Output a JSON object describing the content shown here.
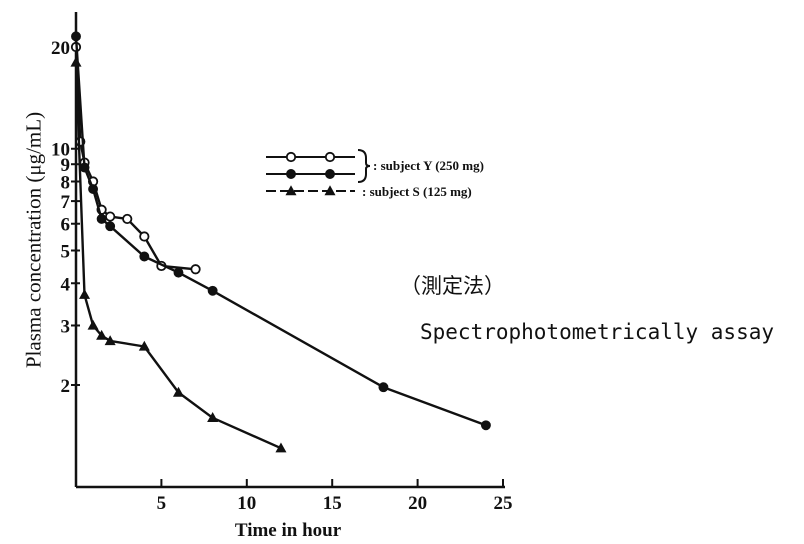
{
  "chart_data": {
    "type": "line",
    "title": "",
    "xlabel": "Time in hour",
    "ylabel": "Plasma concentration (μg/mL)",
    "xlim": [
      0,
      25
    ],
    "ylim": [
      1.2,
      22
    ],
    "y_scale": "log",
    "grid": false,
    "legend_position": "top-center",
    "x_ticks": [
      {
        "value": 5,
        "label": "5"
      },
      {
        "value": 10,
        "label": "10"
      },
      {
        "value": 15,
        "label": "15"
      },
      {
        "value": 20,
        "label": "20"
      },
      {
        "value": 25,
        "label": "25"
      }
    ],
    "y_ticks": [
      {
        "value": 2,
        "label": "2"
      },
      {
        "value": 3,
        "label": "3"
      },
      {
        "value": 4,
        "label": "4"
      },
      {
        "value": 5,
        "label": "5"
      },
      {
        "value": 6,
        "label": "6"
      },
      {
        "value": 7,
        "label": "7"
      },
      {
        "value": 8,
        "label": "8"
      },
      {
        "value": 9,
        "label": "9"
      },
      {
        "value": 10,
        "label": "10"
      },
      {
        "value": 20,
        "label": "20"
      }
    ],
    "series": [
      {
        "name": "subject Y (250 mg)",
        "marker": "open-circle",
        "x": [
          0,
          0.25,
          0.5,
          1,
          1.5,
          2,
          3,
          4,
          5,
          7
        ],
        "y": [
          20,
          10.5,
          9.1,
          8.0,
          6.6,
          6.3,
          6.2,
          5.5,
          4.5,
          4.4
        ]
      },
      {
        "name": "subject Y (250 mg)",
        "marker": "filled-circle",
        "x": [
          0,
          0.5,
          1,
          1.5,
          2,
          4,
          6,
          8,
          18,
          24
        ],
        "y": [
          21.5,
          8.8,
          7.6,
          6.2,
          5.9,
          4.8,
          4.3,
          3.8,
          1.97,
          1.52
        ]
      },
      {
        "name": "subject S (125 mg)",
        "marker": "open-triangle",
        "x": [
          0,
          0.5,
          1,
          1.5,
          2,
          4,
          6,
          8,
          12
        ],
        "y": [
          18,
          3.7,
          3.0,
          2.8,
          2.7,
          2.6,
          1.9,
          1.6,
          1.3
        ]
      }
    ],
    "legend": {
      "entries": [
        {
          "marker": "open-circle",
          "label": ""
        },
        {
          "marker": "filled-circle",
          "label": ""
        },
        {
          "marker": "open-triangle",
          "label": ": subject S (125 mg)"
        }
      ],
      "bracket_label": ": subject Y (250 mg)"
    }
  },
  "annotations": {
    "method_label": "（測定法）",
    "assay_note": "Spectrophotometrically assay"
  }
}
